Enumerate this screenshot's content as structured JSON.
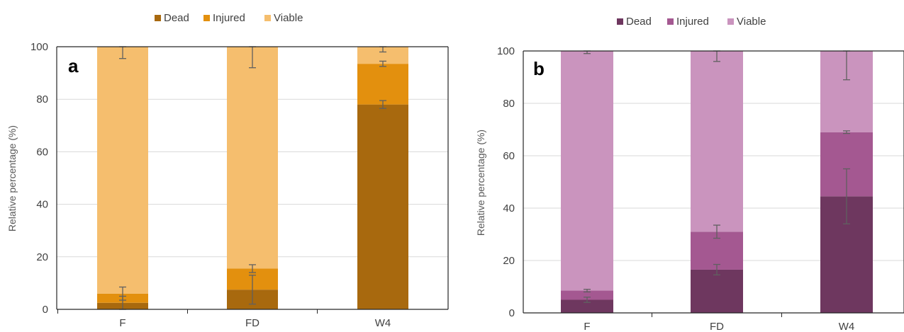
{
  "chart_data": [
    {
      "type": "bar",
      "stacked": true,
      "panel_label": "a",
      "categories": [
        "F",
        "FD",
        "W4"
      ],
      "ylabel": "Relative percentage (%)",
      "ylim": [
        0,
        100
      ],
      "yticks": [
        0,
        20,
        40,
        60,
        80,
        100
      ],
      "grid": true,
      "legend_position": "top",
      "series": [
        {
          "name": "Dead",
          "color": "#A8690E",
          "values": [
            2.5,
            7.5,
            78
          ],
          "errors": [
            2.5,
            5.5,
            1.5
          ]
        },
        {
          "name": "Injured",
          "color": "#E3900E",
          "values": [
            3.5,
            8,
            15.5
          ],
          "errors": [
            2.5,
            1.5,
            1
          ]
        },
        {
          "name": "Viable",
          "color": "#F5BE6E",
          "values": [
            94,
            84.5,
            6.5
          ],
          "errors": [
            4.5,
            8,
            2
          ]
        }
      ]
    },
    {
      "type": "bar",
      "stacked": true,
      "panel_label": "b",
      "categories": [
        "F",
        "FD",
        "W4"
      ],
      "ylabel": "Relative percentage (%)",
      "ylim": [
        0,
        100
      ],
      "yticks": [
        0,
        20,
        40,
        60,
        80,
        100
      ],
      "grid": true,
      "legend_position": "top",
      "series": [
        {
          "name": "Dead",
          "color": "#6E375F",
          "values": [
            5,
            16.5,
            44.5
          ],
          "errors": [
            1,
            2,
            10.5
          ]
        },
        {
          "name": "Injured",
          "color": "#A45891",
          "values": [
            3.5,
            14.5,
            24.5
          ],
          "errors": [
            0.5,
            2.5,
            0.5
          ]
        },
        {
          "name": "Viable",
          "color": "#CA94BE",
          "values": [
            91.5,
            69,
            31
          ],
          "errors": [
            1,
            4,
            11
          ]
        }
      ]
    }
  ]
}
